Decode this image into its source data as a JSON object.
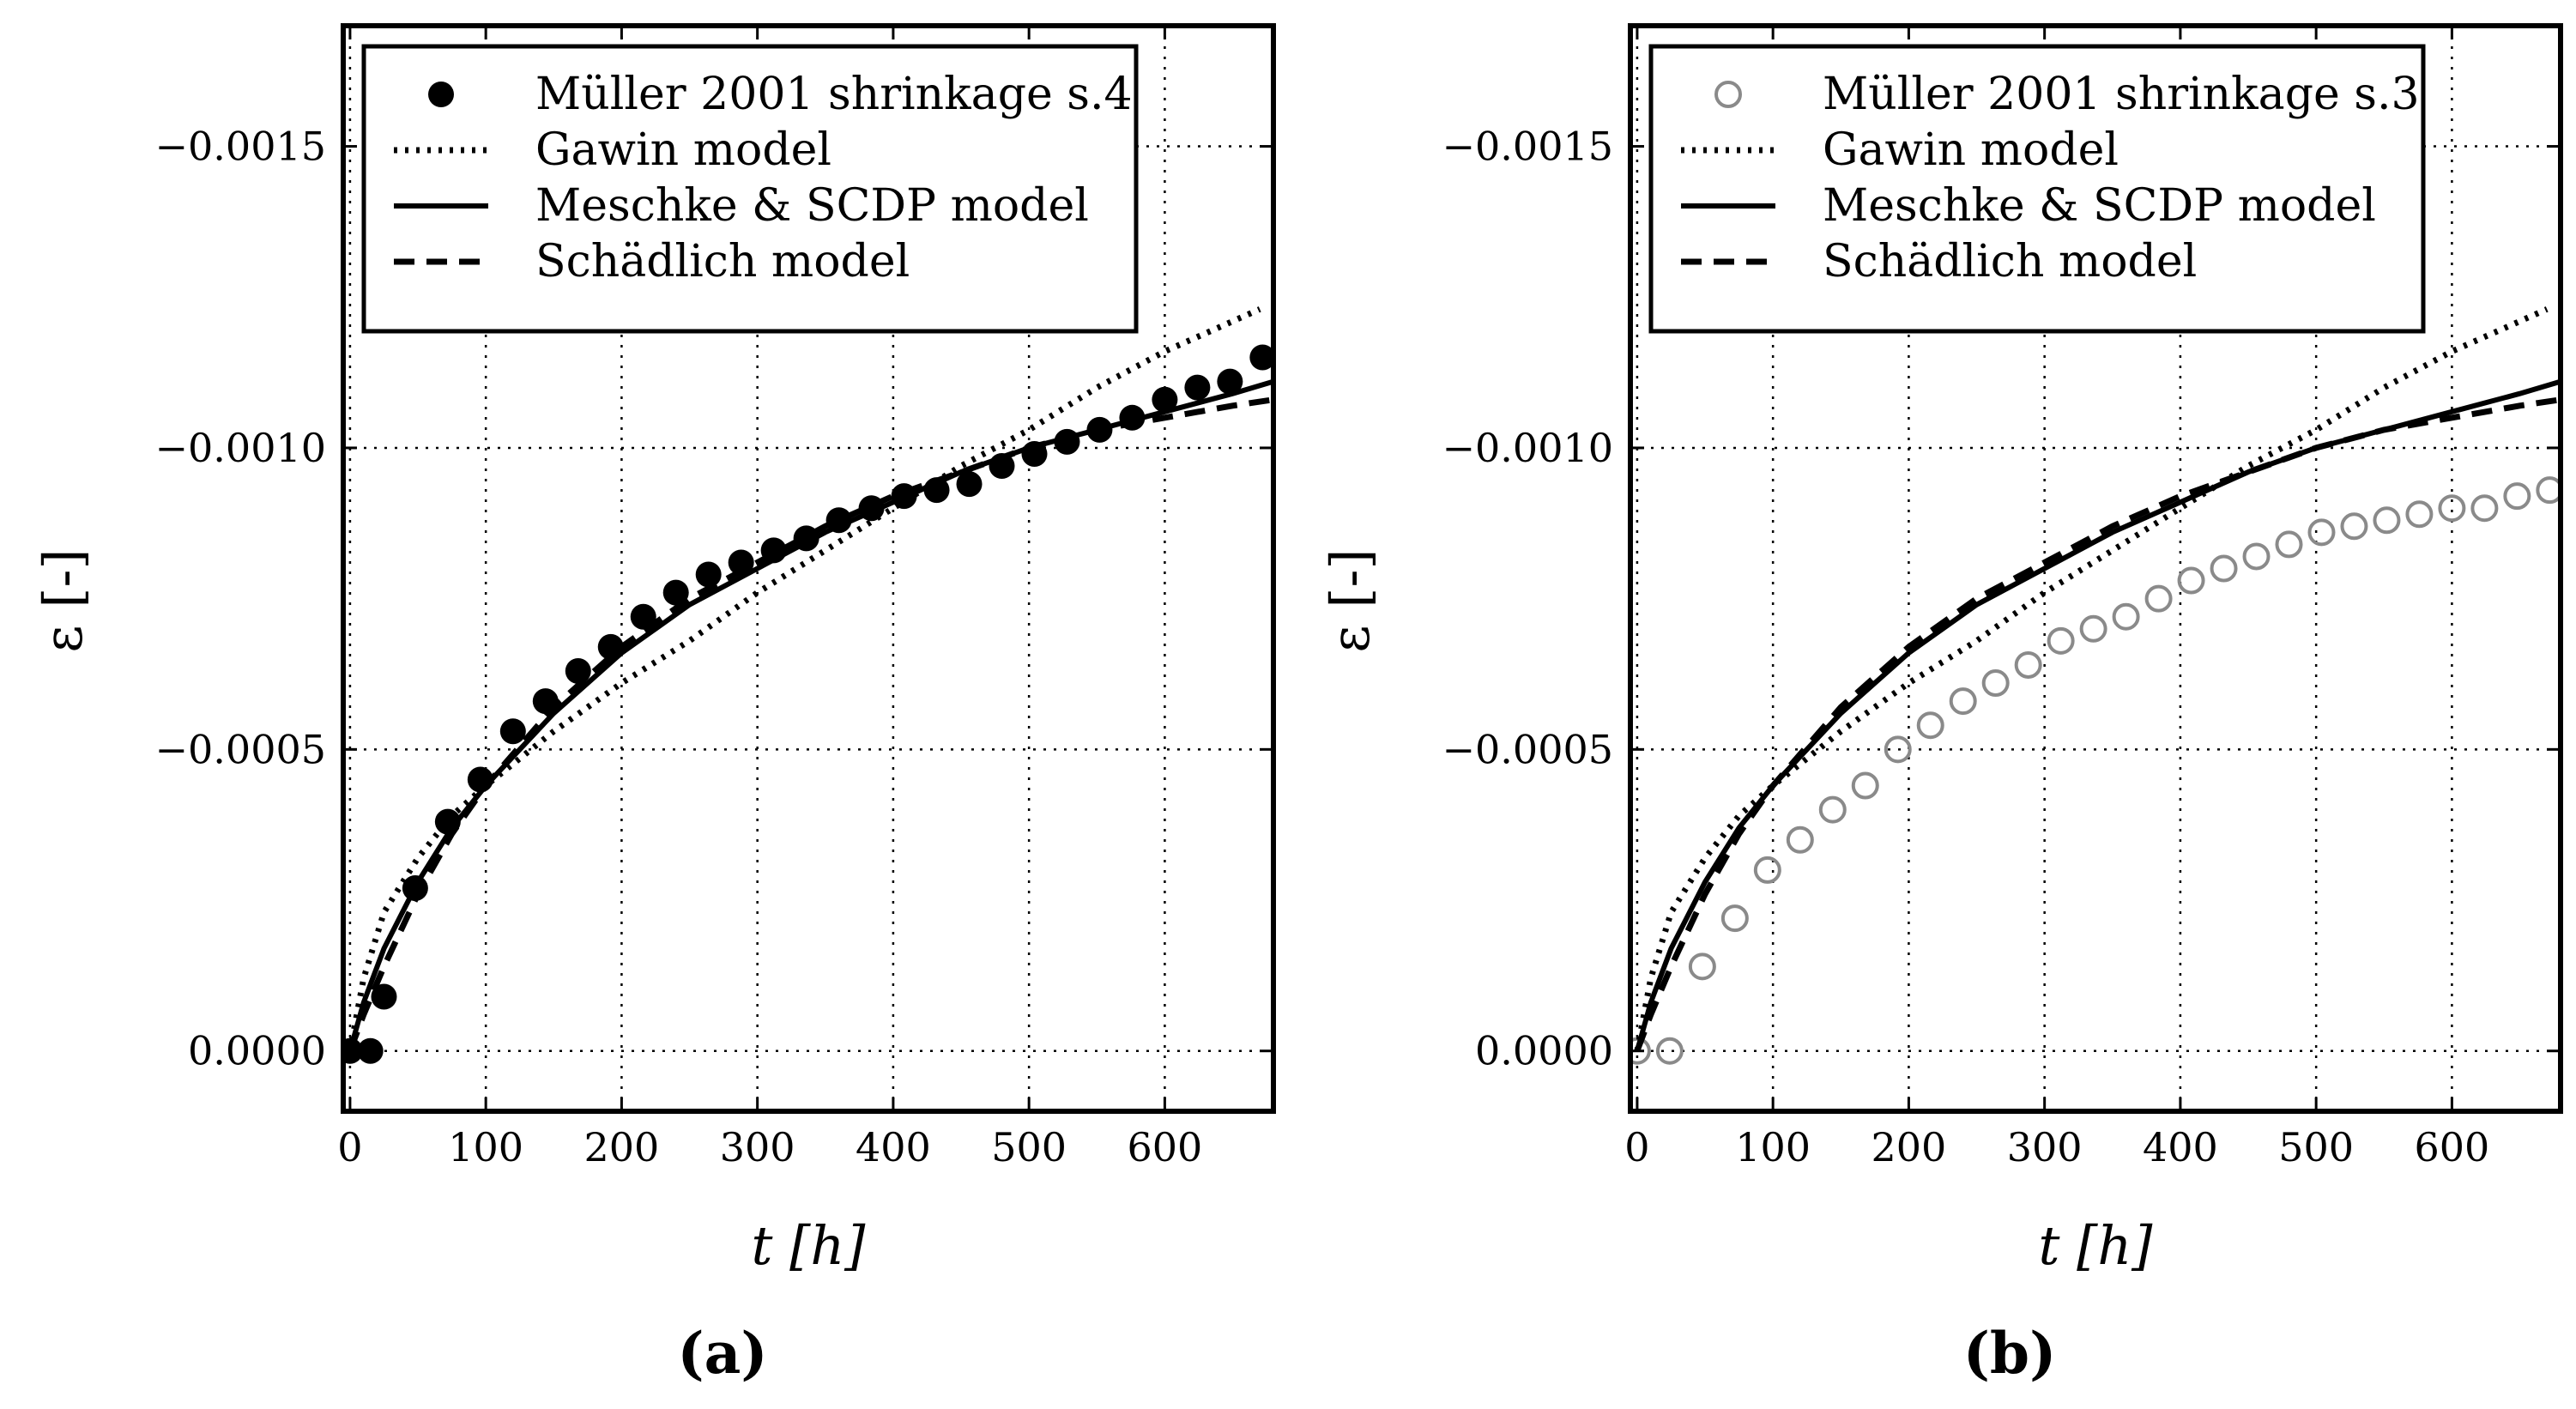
{
  "chart_data": [
    {
      "type": "line",
      "panel_label": "(a)",
      "xlabel": "t [h]",
      "ylabel": "ε [-]",
      "xlim": [
        -5,
        680
      ],
      "ylim": [
        0.0001,
        -0.0017
      ],
      "xticks": [
        0,
        100,
        200,
        300,
        400,
        500,
        600
      ],
      "xtick_labels": [
        "0",
        "100",
        "200",
        "300",
        "400",
        "500",
        "600"
      ],
      "yticks": [
        -0.0015,
        -0.001,
        -0.0005,
        0.0
      ],
      "ytick_labels": [
        "−0.0015",
        "−0.0010",
        "−0.0005",
        "0.0000"
      ],
      "grid": true,
      "legend_position": "top-left",
      "series": [
        {
          "name": "Müller 2001 shrinkage s.4",
          "kind": "scatter-filled",
          "x": [
            0,
            15,
            25,
            48,
            72,
            96,
            120,
            144,
            168,
            192,
            216,
            240,
            264,
            288,
            312,
            336,
            360,
            384,
            408,
            432,
            456,
            480,
            504,
            528,
            552,
            576,
            600,
            624,
            648,
            672
          ],
          "y": [
            0.0,
            0.0,
            -9e-05,
            -0.00027,
            -0.00038,
            -0.00045,
            -0.00053,
            -0.00058,
            -0.00063,
            -0.00067,
            -0.00072,
            -0.00076,
            -0.00079,
            -0.00081,
            -0.00083,
            -0.00085,
            -0.00088,
            -0.0009,
            -0.00092,
            -0.00093,
            -0.00094,
            -0.00097,
            -0.00099,
            -0.00101,
            -0.00103,
            -0.00105,
            -0.00108,
            -0.0011,
            -0.00111,
            -0.00115
          ]
        },
        {
          "name": "Gawin model",
          "kind": "line-dotted",
          "x": [
            0,
            10,
            25,
            50,
            75,
            100,
            150,
            200,
            250,
            300,
            350,
            400,
            450,
            500,
            550,
            600,
            650,
            670
          ],
          "y": [
            0.0,
            -0.00012,
            -0.00023,
            -0.00032,
            -0.00039,
            -0.00044,
            -0.00053,
            -0.00061,
            -0.00068,
            -0.00076,
            -0.00083,
            -0.0009,
            -0.00097,
            -0.00103,
            -0.0011,
            -0.00116,
            -0.00121,
            -0.00123
          ]
        },
        {
          "name": "Meschke & SCDP model",
          "kind": "line-solid",
          "x": [
            0,
            10,
            25,
            50,
            75,
            100,
            150,
            200,
            250,
            300,
            350,
            400,
            450,
            500,
            550,
            600,
            650,
            680
          ],
          "y": [
            0.0,
            -8e-05,
            -0.00017,
            -0.00028,
            -0.00037,
            -0.00044,
            -0.00056,
            -0.00066,
            -0.00074,
            -0.0008,
            -0.00086,
            -0.00091,
            -0.00096,
            -0.001,
            -0.00103,
            -0.00106,
            -0.00109,
            -0.00111
          ]
        },
        {
          "name": "Schädlich model",
          "kind": "line-dashed",
          "x": [
            0,
            10,
            25,
            50,
            75,
            100,
            150,
            200,
            250,
            300,
            350,
            400,
            450,
            500,
            550,
            600,
            650,
            680
          ],
          "y": [
            0.0,
            -6e-05,
            -0.00014,
            -0.00026,
            -0.00036,
            -0.00044,
            -0.00057,
            -0.00067,
            -0.00075,
            -0.00081,
            -0.00087,
            -0.00092,
            -0.00096,
            -0.001,
            -0.00103,
            -0.00105,
            -0.00107,
            -0.00108
          ]
        }
      ]
    },
    {
      "type": "line",
      "panel_label": "(b)",
      "xlabel": "t [h]",
      "ylabel": "ε [-]",
      "xlim": [
        -5,
        680
      ],
      "ylim": [
        0.0001,
        -0.0017
      ],
      "xticks": [
        0,
        100,
        200,
        300,
        400,
        500,
        600
      ],
      "xtick_labels": [
        "0",
        "100",
        "200",
        "300",
        "400",
        "500",
        "600"
      ],
      "yticks": [
        -0.0015,
        -0.001,
        -0.0005,
        0.0
      ],
      "ytick_labels": [
        "−0.0015",
        "−0.0010",
        "−0.0005",
        "0.0000"
      ],
      "grid": true,
      "legend_position": "top-left",
      "series": [
        {
          "name": "Müller 2001 shrinkage s.3",
          "kind": "scatter-open",
          "x": [
            0,
            24,
            48,
            72,
            96,
            120,
            144,
            168,
            192,
            216,
            240,
            264,
            288,
            312,
            336,
            360,
            384,
            408,
            432,
            456,
            480,
            504,
            528,
            552,
            576,
            600,
            624,
            648,
            672
          ],
          "y": [
            0.0,
            0.0,
            -0.00014,
            -0.00022,
            -0.0003,
            -0.00035,
            -0.0004,
            -0.00044,
            -0.0005,
            -0.00054,
            -0.00058,
            -0.00061,
            -0.00064,
            -0.00068,
            -0.0007,
            -0.00072,
            -0.00075,
            -0.00078,
            -0.0008,
            -0.00082,
            -0.00084,
            -0.00086,
            -0.00087,
            -0.00088,
            -0.00089,
            -0.0009,
            -0.0009,
            -0.00092,
            -0.00093
          ]
        },
        {
          "name": "Gawin model",
          "kind": "line-dotted",
          "x": [
            0,
            10,
            25,
            50,
            75,
            100,
            150,
            200,
            250,
            300,
            350,
            400,
            450,
            500,
            550,
            600,
            650,
            670
          ],
          "y": [
            0.0,
            -0.00012,
            -0.00023,
            -0.00032,
            -0.00039,
            -0.00044,
            -0.00053,
            -0.00061,
            -0.00068,
            -0.00076,
            -0.00083,
            -0.0009,
            -0.00097,
            -0.00103,
            -0.0011,
            -0.00116,
            -0.00121,
            -0.00123
          ]
        },
        {
          "name": "Meschke & SCDP model",
          "kind": "line-solid",
          "x": [
            0,
            10,
            25,
            50,
            75,
            100,
            150,
            200,
            250,
            300,
            350,
            400,
            450,
            500,
            550,
            600,
            650,
            680
          ],
          "y": [
            0.0,
            -8e-05,
            -0.00017,
            -0.00028,
            -0.00037,
            -0.00044,
            -0.00056,
            -0.00066,
            -0.00074,
            -0.0008,
            -0.00086,
            -0.00091,
            -0.00096,
            -0.001,
            -0.00103,
            -0.00106,
            -0.00109,
            -0.00111
          ]
        },
        {
          "name": "Schädlich model",
          "kind": "line-dashed",
          "x": [
            0,
            10,
            25,
            50,
            75,
            100,
            150,
            200,
            250,
            300,
            350,
            400,
            450,
            500,
            550,
            600,
            650,
            680
          ],
          "y": [
            0.0,
            -6e-05,
            -0.00014,
            -0.00026,
            -0.00036,
            -0.00044,
            -0.00057,
            -0.00067,
            -0.00075,
            -0.00081,
            -0.00087,
            -0.00092,
            -0.00096,
            -0.001,
            -0.00103,
            -0.00105,
            -0.00107,
            -0.00108
          ]
        }
      ]
    }
  ]
}
